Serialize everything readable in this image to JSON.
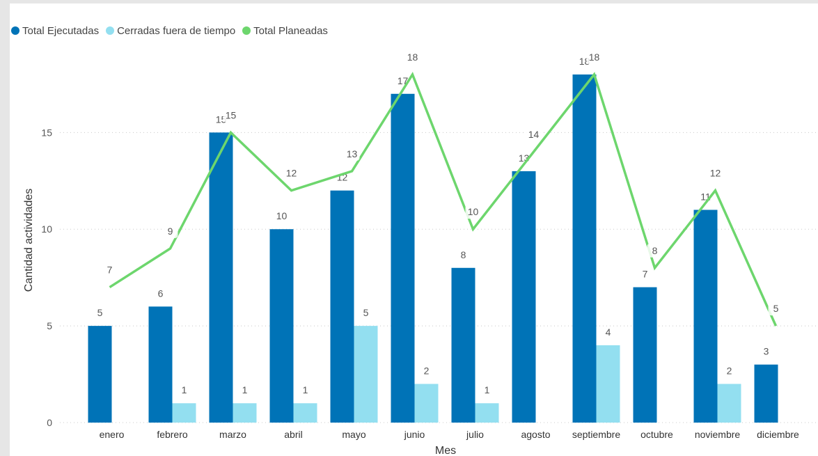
{
  "chart_data": {
    "type": "bar",
    "categories": [
      "enero",
      "febrero",
      "marzo",
      "abril",
      "mayo",
      "junio",
      "julio",
      "agosto",
      "septiembre",
      "octubre",
      "noviembre",
      "diciembre"
    ],
    "series": [
      {
        "name": "Total Ejecutadas",
        "kind": "bar",
        "color": "#0073b7",
        "values": [
          5,
          6,
          15,
          10,
          12,
          17,
          8,
          13,
          18,
          7,
          11,
          3
        ]
      },
      {
        "name": "Cerradas fuera de tiempo",
        "kind": "bar",
        "color": "#93dff0",
        "values": [
          null,
          1,
          1,
          1,
          5,
          2,
          1,
          null,
          4,
          null,
          2,
          null
        ]
      },
      {
        "name": "Total Planeadas",
        "kind": "line",
        "color": "#6dd66d",
        "values": [
          7,
          9,
          15,
          12,
          13,
          18,
          10,
          14,
          18,
          8,
          12,
          5
        ]
      }
    ],
    "xlabel": "Mes",
    "ylabel": "Cantidad actividades",
    "ylim": [
      0,
      18
    ],
    "yticks": [
      0,
      5,
      10,
      15
    ],
    "grid": true,
    "legend_position": "top-left"
  }
}
